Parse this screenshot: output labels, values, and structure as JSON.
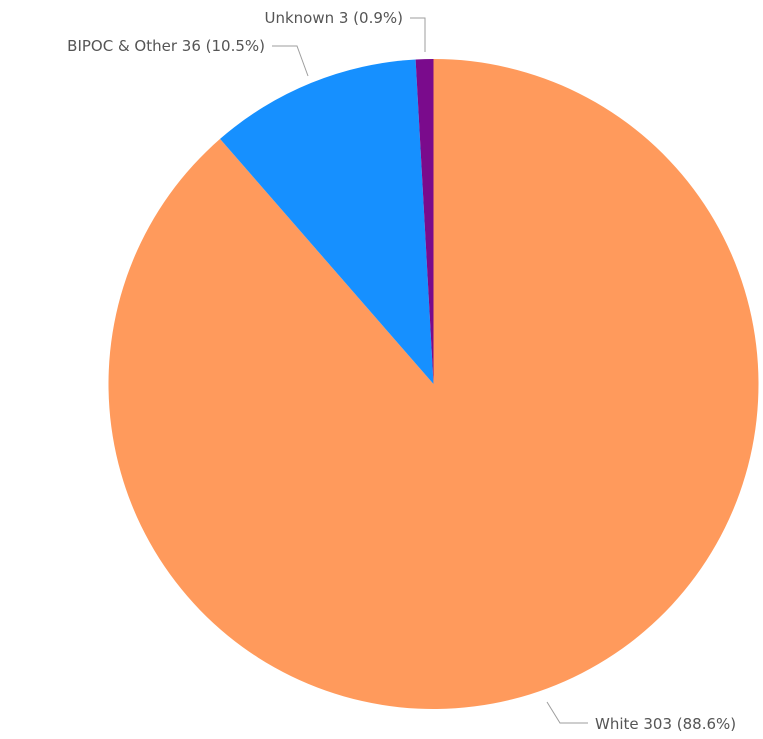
{
  "chart_data": {
    "type": "pie",
    "slices": [
      {
        "label": "White",
        "value": 303,
        "percent": "88.6%",
        "color": "#FF9A5C"
      },
      {
        "label": "BIPOC & Other",
        "value": 36,
        "percent": "10.5%",
        "color": "#1690FF"
      },
      {
        "label": "Unknown",
        "value": 3,
        "percent": "0.9%",
        "color": "#7A0B8C"
      }
    ],
    "label_texts": {
      "white": "White 303 (88.6%)",
      "bipoc": "BIPOC & Other 36 (10.5%)",
      "unknown": "Unknown 3 (0.9%)"
    },
    "legend": false,
    "start_angle": "12 o'clock",
    "direction": "clockwise"
  }
}
